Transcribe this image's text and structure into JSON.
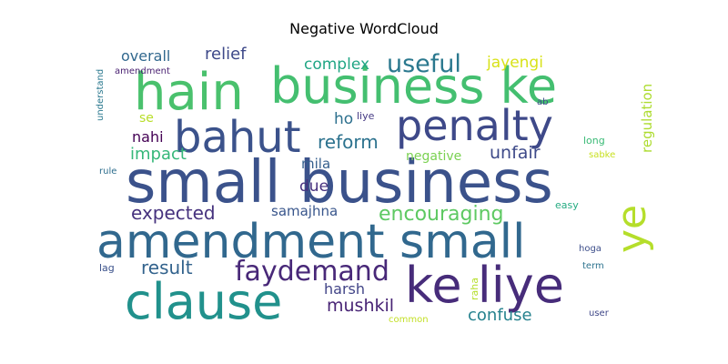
{
  "chart_data": {
    "type": "wordcloud",
    "title": "Negative WordCloud",
    "words": [
      {
        "text": "small business",
        "color": "#3b528b"
      },
      {
        "text": "business ke",
        "color": "#44bf70"
      },
      {
        "text": "hain",
        "color": "#4ac16d"
      },
      {
        "text": "amendment small",
        "color": "#31688e"
      },
      {
        "text": "ke liye",
        "color": "#472c7a"
      },
      {
        "text": "clause",
        "color": "#21918c"
      },
      {
        "text": "penalty",
        "color": "#3e4989"
      },
      {
        "text": "bahut",
        "color": "#3b528b"
      },
      {
        "text": "ye",
        "color": "#b5de2b"
      },
      {
        "text": "faydemand",
        "color": "#482878"
      },
      {
        "text": "useful",
        "color": "#2a788e"
      },
      {
        "text": "encouraging",
        "color": "#5ec962"
      },
      {
        "text": "reform",
        "color": "#2c728e"
      },
      {
        "text": "expected",
        "color": "#46327e"
      },
      {
        "text": "result",
        "color": "#33638d"
      },
      {
        "text": "mushkil",
        "color": "#482475"
      },
      {
        "text": "confuse",
        "color": "#26828e"
      },
      {
        "text": "unfair",
        "color": "#3e4a89"
      },
      {
        "text": "impact",
        "color": "#35b779"
      },
      {
        "text": "relief",
        "color": "#3e4989"
      },
      {
        "text": "overall",
        "color": "#31688e"
      },
      {
        "text": "complex",
        "color": "#21a685"
      },
      {
        "text": "jayengi",
        "color": "#d8e219"
      },
      {
        "text": "nahi",
        "color": "#440154"
      },
      {
        "text": "harsh",
        "color": "#414487"
      },
      {
        "text": "samajhna",
        "color": "#39568c"
      },
      {
        "text": "mila",
        "color": "#355f8d"
      },
      {
        "text": "due",
        "color": "#46307e"
      },
      {
        "text": "regulation",
        "color": "#addc30"
      },
      {
        "text": "negative",
        "color": "#7ad151"
      },
      {
        "text": "ho",
        "color": "#2d708e"
      },
      {
        "text": "se",
        "color": "#b8de29"
      },
      {
        "text": "liye",
        "color": "#443983"
      },
      {
        "text": "amendment",
        "color": "#481f70"
      },
      {
        "text": "understand",
        "color": "#2a788e"
      },
      {
        "text": "rule",
        "color": "#2e6e8e"
      },
      {
        "text": "lag",
        "color": "#3b528b"
      },
      {
        "text": "raha",
        "color": "#b5de2b"
      },
      {
        "text": "common",
        "color": "#c2df23"
      },
      {
        "text": "long",
        "color": "#3aba76"
      },
      {
        "text": "sabke",
        "color": "#c8e020"
      },
      {
        "text": "easy",
        "color": "#25ab82"
      },
      {
        "text": "hoga",
        "color": "#3d4e8a"
      },
      {
        "text": "term",
        "color": "#2c728e"
      },
      {
        "text": "user",
        "color": "#3f4788"
      },
      {
        "text": "ab",
        "color": "#3e4989"
      }
    ]
  }
}
